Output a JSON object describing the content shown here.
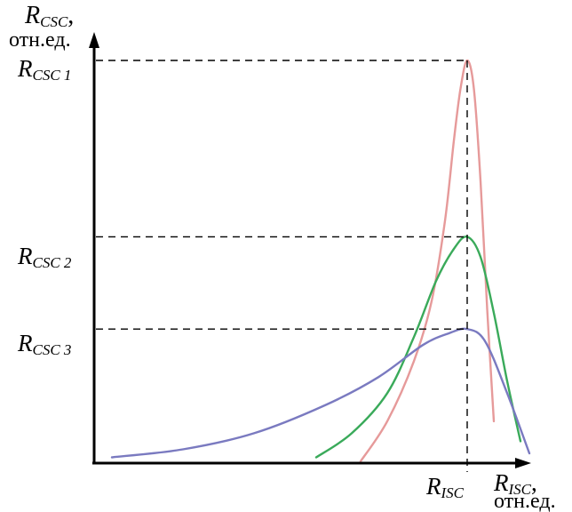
{
  "chart_data": {
    "type": "line",
    "y_axis_label": {
      "main": "R",
      "sub": "CSC",
      "suffix": ",",
      "line2": "отн.ед."
    },
    "x_axis_label": {
      "main": "R",
      "sub": "ISC",
      "suffix": ",",
      "line2": "отн.ед."
    },
    "x_mark_label": {
      "main": "R",
      "sub": "ISC"
    },
    "y_mark_labels": [
      {
        "main": "R",
        "sub": "CSC 1"
      },
      {
        "main": "R",
        "sub": "CSC 2"
      },
      {
        "main": "R",
        "sub": "CSC 3"
      }
    ],
    "x_mark": 0.84,
    "y_marks": [
      1.0,
      0.56,
      0.33
    ],
    "xlim": [
      0,
      1
    ],
    "ylim": [
      0,
      1
    ],
    "grid": false,
    "series": [
      {
        "color": "#e69a9a",
        "points": [
          [
            0.6,
            0.0
          ],
          [
            0.66,
            0.1
          ],
          [
            0.72,
            0.25
          ],
          [
            0.76,
            0.4
          ],
          [
            0.79,
            0.6
          ],
          [
            0.81,
            0.8
          ],
          [
            0.825,
            0.93
          ],
          [
            0.84,
            1.0
          ],
          [
            0.855,
            0.93
          ],
          [
            0.87,
            0.7
          ],
          [
            0.885,
            0.38
          ],
          [
            0.9,
            0.1
          ]
        ]
      },
      {
        "color": "#3aaa5a",
        "points": [
          [
            0.5,
            0.01
          ],
          [
            0.58,
            0.07
          ],
          [
            0.66,
            0.17
          ],
          [
            0.72,
            0.31
          ],
          [
            0.77,
            0.45
          ],
          [
            0.81,
            0.53
          ],
          [
            0.84,
            0.56
          ],
          [
            0.87,
            0.51
          ],
          [
            0.9,
            0.37
          ],
          [
            0.93,
            0.2
          ],
          [
            0.96,
            0.05
          ]
        ]
      },
      {
        "color": "#7a7ac0",
        "points": [
          [
            0.04,
            0.01
          ],
          [
            0.2,
            0.03
          ],
          [
            0.36,
            0.07
          ],
          [
            0.52,
            0.14
          ],
          [
            0.64,
            0.21
          ],
          [
            0.74,
            0.29
          ],
          [
            0.8,
            0.32
          ],
          [
            0.84,
            0.33
          ],
          [
            0.88,
            0.3
          ],
          [
            0.93,
            0.17
          ],
          [
            0.98,
            0.02
          ]
        ]
      }
    ]
  }
}
